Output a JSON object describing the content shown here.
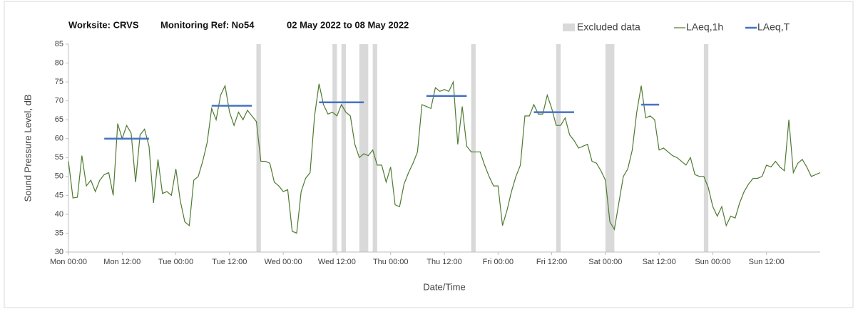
{
  "chart_data": {
    "type": "line",
    "title": [
      "Worksite: CRVS",
      "Monitoring Ref: No54",
      "02 May 2022 to 08 May 2022"
    ],
    "xlabel": "Date/Time",
    "ylabel": "Sound Pressure Level, dB",
    "xlim": [
      0,
      168
    ],
    "xticks": [
      {
        "value": 0,
        "label": "Mon 00:00"
      },
      {
        "value": 12,
        "label": "Mon 12:00"
      },
      {
        "value": 24,
        "label": "Tue 00:00"
      },
      {
        "value": 36,
        "label": "Tue 12:00"
      },
      {
        "value": 48,
        "label": "Wed 00:00"
      },
      {
        "value": 60,
        "label": "Wed 12:00"
      },
      {
        "value": 72,
        "label": "Thu 00:00"
      },
      {
        "value": 84,
        "label": "Thu 12:00"
      },
      {
        "value": 96,
        "label": "Fri 00:00"
      },
      {
        "value": 108,
        "label": "Fri 12:00"
      },
      {
        "value": 120,
        "label": "Sat 00:00"
      },
      {
        "value": 132,
        "label": "Sat 12:00"
      },
      {
        "value": 144,
        "label": "Sun 00:00"
      },
      {
        "value": 156,
        "label": "Sun 12:00"
      }
    ],
    "ylim": [
      30,
      85
    ],
    "yticks": [
      30,
      35,
      40,
      45,
      50,
      55,
      60,
      65,
      70,
      75,
      80,
      85
    ],
    "grid": false,
    "excluded": {
      "name": "Excluded data",
      "color": "#d9d9d9",
      "ranges": [
        [
          42,
          43
        ],
        [
          59,
          60
        ],
        [
          61,
          62
        ],
        [
          65,
          67
        ],
        [
          68,
          69
        ],
        [
          90,
          91
        ],
        [
          109,
          110
        ],
        [
          120,
          122
        ],
        [
          142,
          143
        ]
      ]
    },
    "x": [
      0,
      1,
      2,
      3,
      4,
      5,
      6,
      7,
      8,
      9,
      10,
      11,
      12,
      13,
      14,
      15,
      16,
      17,
      18,
      19,
      20,
      21,
      22,
      23,
      24,
      25,
      26,
      27,
      28,
      29,
      30,
      31,
      32,
      33,
      34,
      35,
      36,
      37,
      38,
      39,
      40,
      41,
      42,
      43,
      44,
      45,
      46,
      47,
      48,
      49,
      50,
      51,
      52,
      53,
      54,
      55,
      56,
      57,
      58,
      59,
      60,
      61,
      62,
      63,
      64,
      65,
      66,
      67,
      68,
      69,
      70,
      71,
      72,
      73,
      74,
      75,
      76,
      77,
      78,
      79,
      80,
      81,
      82,
      83,
      84,
      85,
      86,
      87,
      88,
      89,
      90,
      91,
      92,
      93,
      94,
      95,
      96,
      97,
      98,
      99,
      100,
      101,
      102,
      103,
      104,
      105,
      106,
      107,
      108,
      109,
      110,
      111,
      112,
      113,
      114,
      115,
      116,
      117,
      118,
      119,
      120,
      121,
      122,
      123,
      124,
      125,
      126,
      127,
      128,
      129,
      130,
      131,
      132,
      133,
      134,
      135,
      136,
      137,
      138,
      139,
      140,
      141,
      142,
      143,
      144,
      145,
      146,
      147,
      148,
      149,
      150,
      151,
      152,
      153,
      154,
      155,
      156,
      157,
      158,
      159,
      160,
      161,
      162,
      163,
      164,
      165,
      166,
      167,
      168
    ],
    "series": [
      {
        "name": "LAeq,1h",
        "color": "#4f7a30",
        "values": [
          54,
          44.3,
          44.5,
          55.5,
          47.5,
          49,
          46,
          49,
          50.5,
          51,
          45,
          64,
          60,
          63.5,
          61.5,
          48.5,
          61,
          62.5,
          58,
          43,
          54.5,
          45.5,
          46,
          45,
          52,
          43.5,
          38,
          37,
          49,
          50,
          54,
          59,
          68,
          65,
          71.5,
          74,
          67,
          63.5,
          67,
          65,
          67.5,
          66,
          64.5,
          54,
          54,
          53.5,
          48.5,
          47.5,
          46,
          46.5,
          35.5,
          35,
          46,
          49.5,
          51,
          66,
          74.5,
          69,
          66.5,
          67,
          66,
          69,
          67,
          66,
          58.5,
          55,
          56,
          55.5,
          57,
          53,
          53,
          48.5,
          52.5,
          42.5,
          42,
          48,
          51,
          53.5,
          56.5,
          69,
          68.5,
          68,
          73.5,
          72.5,
          73,
          72.5,
          75,
          58.5,
          68.5,
          58,
          56.5,
          56.5,
          56.5,
          53,
          50,
          47.5,
          47.5,
          37,
          41,
          46,
          50,
          53,
          66,
          66,
          69,
          66.5,
          66.5,
          71.5,
          68,
          63.5,
          63.5,
          65.5,
          61,
          59.5,
          57.5,
          58,
          58.5,
          54,
          53.5,
          51.5,
          49,
          38,
          36,
          43,
          50,
          52,
          57,
          67,
          74,
          65.5,
          66,
          65,
          57,
          57.5,
          56.5,
          55.5,
          55,
          54,
          53,
          55,
          50.5,
          50,
          50,
          47,
          42,
          39.5,
          42,
          37,
          39.5,
          39,
          43,
          46,
          48,
          49.5,
          49.5,
          50,
          53,
          52.5,
          54,
          52.5,
          51.5,
          65,
          51,
          53.5,
          54.5,
          52.5,
          50,
          50.5,
          51
        ]
      },
      {
        "name": "LAeq,T",
        "color": "#4472c4",
        "segments": [
          {
            "x": [
              8,
              18
            ],
            "value": 60
          },
          {
            "x": [
              32,
              41
            ],
            "value": 68.7
          },
          {
            "x": [
              56,
              66
            ],
            "value": 69.6
          },
          {
            "x": [
              80,
              89
            ],
            "value": 71.3
          },
          {
            "x": [
              104,
              113
            ],
            "value": 67
          },
          {
            "x": [
              128,
              132
            ],
            "value": 69
          }
        ]
      }
    ]
  }
}
